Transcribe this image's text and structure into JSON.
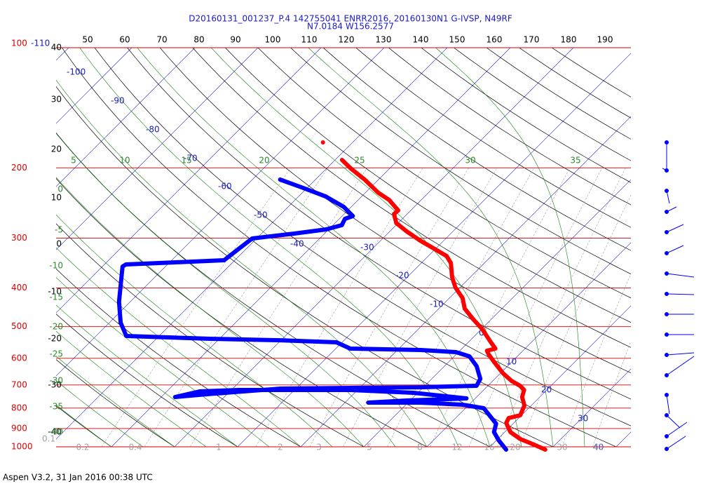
{
  "chart_data": {
    "type": "skewt",
    "title": "D20160131_001237_P.4 142755041 ENRR2016, 20160130N1 G-IVSP, N49RF",
    "subtitle": "N7.0184 W156.2577",
    "caption": "Aspen V3.2, 31 Jan 2016  00:38 UTC",
    "log_y": true,
    "ylim": [
      100,
      1000
    ],
    "yticks": [
      100,
      200,
      300,
      400,
      500,
      600,
      700,
      800,
      900,
      1000
    ],
    "theta_labels": [
      50,
      60,
      70,
      80,
      90,
      100,
      110,
      120,
      130,
      140,
      150,
      160,
      170,
      180,
      190
    ],
    "theta_left_labels": [
      40,
      30,
      20,
      10,
      0,
      -10,
      -20,
      -30,
      -40
    ],
    "isotherms": [
      -110,
      -100,
      -90,
      -80,
      -70,
      -60,
      -50,
      -40,
      -30,
      -20,
      -10,
      0,
      10,
      20,
      30,
      40
    ],
    "moist_top_labels": [
      5,
      10,
      15,
      20,
      25,
      30,
      35
    ],
    "moist_left_labels": [
      0,
      -5,
      -10,
      -15,
      -20,
      -25,
      -30,
      -35,
      -40
    ],
    "mixing_ratios": [
      0.1,
      0.2,
      0.4,
      1,
      2,
      3,
      5,
      8,
      12,
      16,
      20,
      30,
      40
    ],
    "series": [
      {
        "color": "#ff0000",
        "pressure": [
          1016.3,
          984.0,
          956.5,
          918.6,
          871.5,
          847.2,
          833.6,
          787.6,
          750.3,
          720.6,
          703.3,
          683.9,
          654.1,
          612.9,
          586.2,
          574.4,
          567.5,
          545.0,
          506.8,
          478.7,
          450.6,
          424.1,
          399.1,
          375.6,
          346.5,
          332.7,
          319.5,
          304.4,
          288.7,
          275.0,
          260.9,
          255.7,
          240.6,
          231.1,
          214.0,
          200.6,
          191.1,
          null,
          172.7
        ],
        "values": [
          29.2,
          26.3,
          23.6,
          20.9,
          18.8,
          18.4,
          19.8,
          18.9,
          17.2,
          16.4,
          15.1,
          13.0,
          10.4,
          7.2,
          5.1,
          4.3,
          5.3,
          3.4,
          0.1,
          -2.9,
          -5.9,
          -7.9,
          -10.7,
          -12.9,
          -15.3,
          -17.1,
          -20.1,
          -23.7,
          -27.3,
          -30.3,
          -32.1,
          -32.0,
          -35.1,
          -37.9,
          -42.2,
          -46.2,
          -48.9,
          null,
          -54.7
        ]
      },
      {
        "color": "#0000ff",
        "pressure": [
          1016.3,
          964.3,
          918.6,
          875.0,
          833.6,
          800.6,
          784.4,
          775.0,
          775.0,
          765.6,
          759.4,
          756.4,
          732.3,
          720.6,
          720.6,
          720.6,
          726.4,
          750.3,
          738.3,
          714.8,
          711.9,
          709.1,
          703.3,
          675.5,
          628.0,
          593.4,
          579.1,
          572.1,
          567.5,
          547.2,
          540.7,
          536.3,
          527.7,
          488.7,
          432.8,
          383.3,
          353.5,
          349.2,
          345.0,
          340.8,
          319.5,
          300.6,
          292.2,
          285.2,
          278.4,
          268.4,
          264.1,
          250.5,
          235.9,
          223.7,
          214.0
        ],
        "values": [
          23.0,
          20.4,
          18.3,
          17.3,
          14.9,
          12.9,
          9.0,
          2.0,
          -6.3,
          -0.6,
          5.9,
          8.6,
          -0.7,
          -11.1,
          -20.0,
          -28.9,
          -34.8,
          -37.8,
          -33.2,
          -22.4,
          -11.4,
          -0.4,
          8.2,
          7.7,
          5.1,
          2.4,
          -0.4,
          -6.3,
          -17.7,
          -20.9,
          -30.1,
          -41.4,
          -55.2,
          -58.2,
          -61.8,
          -64.8,
          -66.8,
          -66.6,
          -59.1,
          -51.7,
          -51.2,
          -50.7,
          -44.8,
          -40.4,
          -38.6,
          -39.1,
          -38.3,
          -41.2,
          -45.7,
          -51.0,
          -55.6
        ]
      }
    ]
  }
}
